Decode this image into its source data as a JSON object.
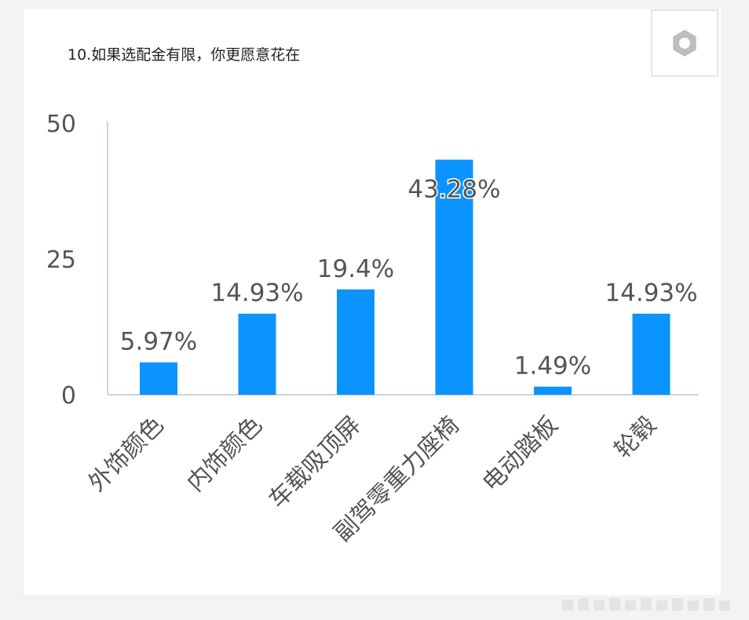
{
  "title": "10.如果选配金有限，你更愿意花在",
  "settings_icon": "gear-icon",
  "colors": {
    "bar": "#0b93ff",
    "axis": "#c9d4e4",
    "text": "#555555",
    "background": "#ffffff"
  },
  "chart_data": {
    "type": "bar",
    "title": "10.如果选配金有限，你更愿意花在",
    "categories": [
      "外饰颜色",
      "内饰颜色",
      "车载吸顶屏",
      "副驾零重力座椅",
      "电动踏板",
      "轮毂"
    ],
    "values": [
      5.97,
      14.93,
      19.4,
      43.28,
      1.49,
      14.93
    ],
    "data_labels": [
      "5.97%",
      "14.93%",
      "19.4%",
      "43.28%",
      "1.49%",
      "14.93%"
    ],
    "yticks": [
      "0",
      "25",
      "50"
    ],
    "ylim": [
      0,
      50
    ],
    "xlabel": "",
    "ylabel": "",
    "grid": false,
    "legend": "none"
  }
}
